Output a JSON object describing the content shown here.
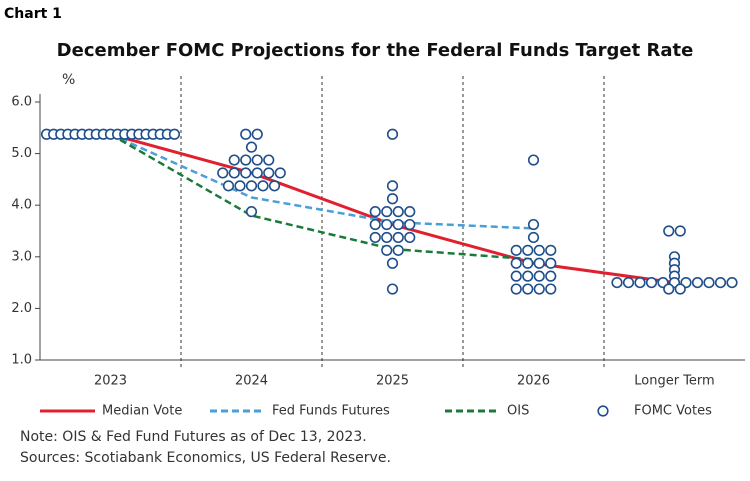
{
  "label": "Chart 1",
  "chart_data": {
    "type": "line",
    "title": "December FOMC Projections for the Federal Funds Target Rate",
    "y_label": "%",
    "categories": [
      "2023",
      "2024",
      "2025",
      "2026",
      "Longer Term"
    ],
    "ylim": [
      1,
      6
    ],
    "yticks": [
      {
        "value": 1,
        "label": "1.0"
      },
      {
        "value": 2,
        "label": "2.0"
      },
      {
        "value": 3,
        "label": "3.0"
      },
      {
        "value": 4,
        "label": "4.0"
      },
      {
        "value": 5,
        "label": "5.0"
      },
      {
        "value": 6,
        "label": "6.0"
      }
    ],
    "series": [
      {
        "name": "Median Vote",
        "color": "#e0202e",
        "dashed": false,
        "values": [
          5.375,
          4.625,
          3.625,
          2.875,
          2.5
        ]
      },
      {
        "name": "Fed Funds Futures",
        "color": "#4a9fd8",
        "dashed": true,
        "values": [
          5.375,
          4.15,
          3.67,
          3.55,
          null
        ]
      },
      {
        "name": "OIS",
        "color": "#1a7a3a",
        "dashed": true,
        "values": [
          5.375,
          3.8,
          3.15,
          2.95,
          null
        ]
      },
      {
        "name": "FOMC Votes",
        "color": "#1f4e8c",
        "marker": "circle",
        "values": [
          [
            5.375,
            5.375,
            5.375,
            5.375,
            5.375,
            5.375,
            5.375,
            5.375,
            5.375,
            5.375,
            5.375,
            5.375,
            5.375,
            5.375,
            5.375,
            5.375,
            5.375,
            5.375,
            5.375
          ],
          [
            5.375,
            5.375,
            5.125,
            4.875,
            4.875,
            4.875,
            4.875,
            4.625,
            4.625,
            4.625,
            4.625,
            4.625,
            4.625,
            4.375,
            4.375,
            4.375,
            4.375,
            4.375,
            3.875
          ],
          [
            5.375,
            4.375,
            4.125,
            3.875,
            3.875,
            3.875,
            3.875,
            3.625,
            3.625,
            3.625,
            3.625,
            3.375,
            3.375,
            3.375,
            3.375,
            3.125,
            3.125,
            2.875,
            2.375
          ],
          [
            4.875,
            3.625,
            3.375,
            3.125,
            3.125,
            3.125,
            3.125,
            2.875,
            2.875,
            2.875,
            2.875,
            2.625,
            2.625,
            2.625,
            2.625,
            2.375,
            2.375,
            2.375,
            2.375
          ],
          [
            3.5,
            3.5,
            3.0,
            2.875,
            2.75,
            2.625,
            2.5,
            2.5,
            2.5,
            2.5,
            2.5,
            2.5,
            2.5,
            2.5,
            2.5,
            2.5,
            2.5,
            2.375,
            2.375
          ]
        ]
      }
    ]
  },
  "notes": [
    "Note: OIS & Fed Fund Futures as of Dec 13, 2023.",
    "Sources: Scotiabank Economics, US Federal Reserve."
  ]
}
